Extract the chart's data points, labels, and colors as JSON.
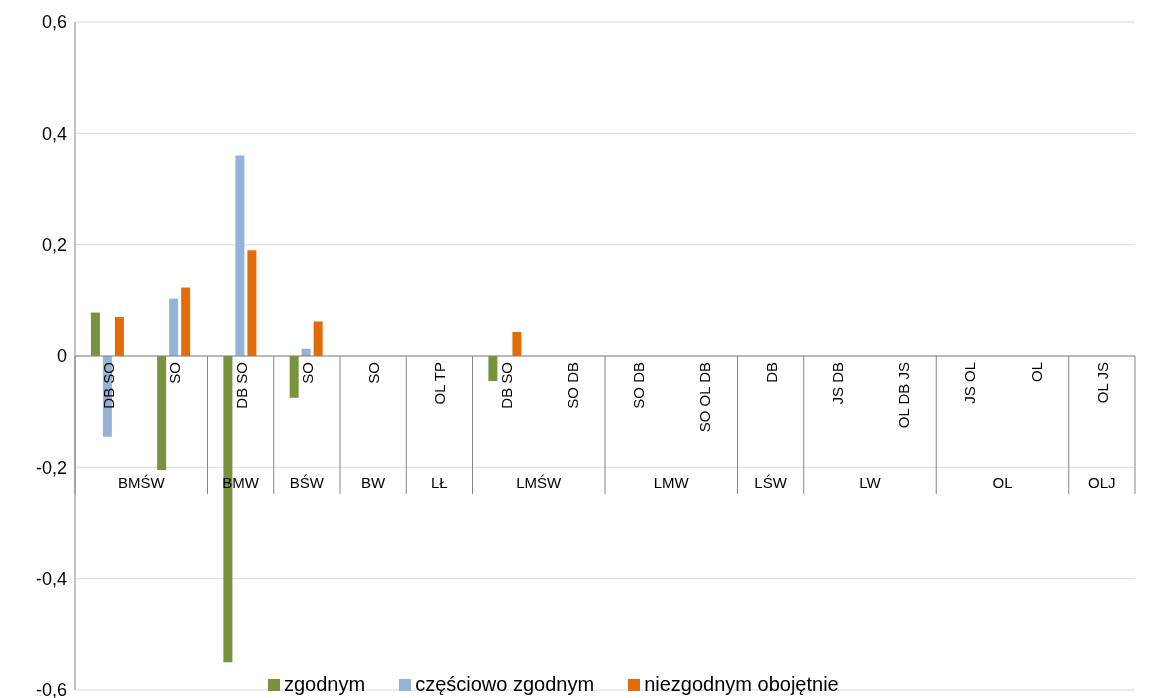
{
  "chart_data": {
    "type": "bar",
    "categories": [
      "DB SO",
      "SO",
      "DB SO",
      "SO",
      "SO",
      "OL TP",
      "DB SO",
      "SO DB",
      "SO DB",
      "SO OL DB",
      "DB",
      "JS DB",
      "OL DB JS",
      "JS OL",
      "OL",
      "OL JS"
    ],
    "annotations": [
      "BMŚW",
      "BMW",
      "BŚW",
      "BW",
      "LŁ",
      "LMŚW",
      "LMW",
      "LŚW",
      "LW",
      "OL",
      "OLJ"
    ],
    "series": [
      {
        "name": "zgodnym",
        "color": "#77933c",
        "values": [
          0.078,
          -0.205,
          -0.55,
          -0.075,
          null,
          null,
          -0.045,
          null,
          null,
          null,
          null,
          null,
          null,
          null,
          null,
          null
        ]
      },
      {
        "name": "częściowo zgodnym",
        "color": "#95b3d7",
        "values": [
          -0.145,
          0.103,
          0.36,
          0.013,
          null,
          null,
          null,
          null,
          null,
          null,
          null,
          null,
          null,
          null,
          null,
          null
        ]
      },
      {
        "name": "niezgodnym obojętnie",
        "color": "#e36c09",
        "values": [
          0.07,
          0.123,
          0.19,
          0.062,
          null,
          null,
          0.043,
          null,
          null,
          null,
          null,
          null,
          null,
          null,
          null,
          null
        ]
      }
    ],
    "ylim": [
      -0.6,
      0.6
    ],
    "yticks": [
      {
        "value": -0.6,
        "label": "-0,6"
      },
      {
        "value": -0.4,
        "label": "-0,4"
      },
      {
        "value": -0.2,
        "label": "-0,2"
      },
      {
        "value": 0,
        "label": "0"
      },
      {
        "value": 0.2,
        "label": "0,2"
      },
      {
        "value": 0.4,
        "label": "0,4"
      },
      {
        "value": 0.6,
        "label": "0,6"
      }
    ],
    "grid": "y",
    "legend": "bottom"
  }
}
